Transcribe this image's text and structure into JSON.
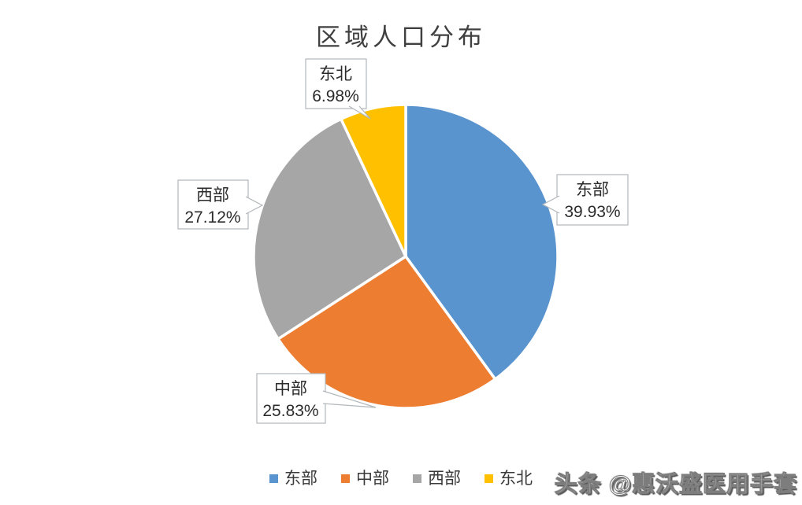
{
  "chart_data": {
    "type": "pie",
    "title": "区域人口分布",
    "categories": [
      "东部",
      "中部",
      "西部",
      "东北"
    ],
    "values": [
      39.93,
      25.83,
      27.12,
      6.98
    ],
    "value_format": "percent",
    "colors": [
      "#5994CF",
      "#ED7D31",
      "#A6A6A6",
      "#FFC000"
    ],
    "start_angle_deg": 0,
    "direction": "clockwise",
    "legend_position": "bottom",
    "data_labels": [
      {
        "name": "东部",
        "value": "39.93%"
      },
      {
        "name": "中部",
        "value": "25.83%"
      },
      {
        "name": "西部",
        "value": "27.12%"
      },
      {
        "name": "东北",
        "value": "6.98%"
      }
    ],
    "legend": {
      "items": [
        "东部",
        "中部",
        "西部",
        "东北"
      ]
    }
  },
  "watermark": {
    "text": "头条 @惠沃盛医用手套"
  }
}
